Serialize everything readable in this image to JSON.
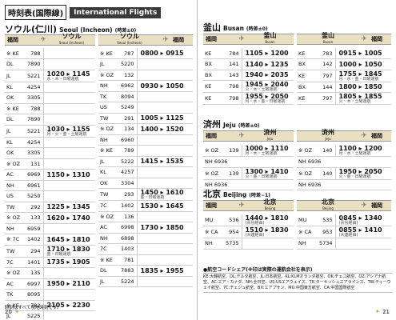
{
  "header": {
    "jp": "時刻表(国際線)",
    "en": "International Flights"
  },
  "seoul": {
    "title": "ソウル(仁川)",
    "title_en": "Seoul (Incheon)",
    "note": "(時差±0)",
    "bar_left": {
      "from": "福岡",
      "from_en": "Fukuoka",
      "dest": "ソウル",
      "dest_en": "Seoul (Incheon)"
    },
    "bar_right": {
      "from": "ソウル",
      "from_en": "Seoul (Incheon)",
      "dest": "福岡",
      "dest_en": "Fukuoka"
    },
    "dep_rows": [
      {
        "airline": "※ KE",
        "flight": "788",
        "time": "",
        "note": ""
      },
      {
        "airline": "DL",
        "flight": "7890",
        "time": "",
        "note": ""
      },
      {
        "airline": "JL",
        "flight": "5221",
        "time": "1020 ▸ 1145",
        "note": "水・木・日曜運航"
      },
      {
        "airline": "KL",
        "flight": "4254",
        "time": "",
        "note": ""
      },
      {
        "airline": "OK",
        "flight": "3305",
        "time": "",
        "note": ""
      },
      {
        "airline": "※ KE",
        "flight": "788",
        "time": "",
        "note": ""
      },
      {
        "airline": "DL",
        "flight": "7890",
        "time": "",
        "note": ""
      },
      {
        "airline": "JL",
        "flight": "5221",
        "time": "1030 ▸ 1155",
        "note": "月・火・金・土曜運航"
      },
      {
        "airline": "KL",
        "flight": "4254",
        "time": "",
        "note": ""
      },
      {
        "airline": "OK",
        "flight": "3305",
        "time": "",
        "note": ""
      },
      {
        "airline": "※ OZ",
        "flight": "131",
        "time": "",
        "note": ""
      },
      {
        "airline": "AC",
        "flight": "6969",
        "time": "1150 ▸ 1310",
        "note": ""
      },
      {
        "airline": "NH",
        "flight": "6961",
        "time": "",
        "note": ""
      },
      {
        "airline": "US",
        "flight": "5250",
        "time": "",
        "note": ""
      },
      {
        "airline": "TW",
        "flight": "292",
        "time": "1225 ▸ 1345",
        "note": ""
      },
      {
        "airline": "※ OZ",
        "flight": "133",
        "time": "1620 ▸ 1740",
        "note": ""
      },
      {
        "airline": "NH",
        "flight": "6959",
        "time": "",
        "note": ""
      },
      {
        "airline": "※ 7C",
        "flight": "1402",
        "time": "1645 ▸ 1810",
        "note": ""
      },
      {
        "airline": "TW",
        "flight": "294",
        "time": "1710 ▸ 1830",
        "note": "金・日曜運航"
      },
      {
        "airline": "7C",
        "flight": "1401",
        "time": "1735 ▸ 1905",
        "note": ""
      },
      {
        "airline": "※ OZ",
        "flight": "135",
        "time": "",
        "note": ""
      },
      {
        "airline": "AC",
        "flight": "6997",
        "time": "1950 ▸ 2110",
        "note": ""
      },
      {
        "airline": "TK",
        "flight": "8095",
        "time": "",
        "note": ""
      },
      {
        "airline": "※ KE",
        "flight": "782",
        "time": "2105 ▸ 2230",
        "note": ""
      },
      {
        "airline": "JL",
        "flight": "5225",
        "time": "",
        "note": ""
      }
    ],
    "ret_rows": [
      {
        "airline": "※ KE",
        "flight": "787",
        "time": "0800 ▸ 0915",
        "note": ""
      },
      {
        "airline": "JL",
        "flight": "5220",
        "time": "",
        "note": ""
      },
      {
        "airline": "※ OZ",
        "flight": "132",
        "time": "",
        "note": ""
      },
      {
        "airline": "NH",
        "flight": "6962",
        "time": "0930 ▸ 1050",
        "note": ""
      },
      {
        "airline": "TK",
        "flight": "8094",
        "time": "",
        "note": ""
      },
      {
        "airline": "US",
        "flight": "5249",
        "time": "",
        "note": ""
      },
      {
        "airline": "TW",
        "flight": "291",
        "time": "1005 ▸ 1125",
        "note": ""
      },
      {
        "airline": "※ OZ",
        "flight": "134",
        "time": "1400 ▸ 1520",
        "note": ""
      },
      {
        "airline": "NH",
        "flight": "6960",
        "time": "",
        "note": ""
      },
      {
        "airline": "※ KE",
        "flight": "789",
        "time": "",
        "note": ""
      },
      {
        "airline": "JL",
        "flight": "5222",
        "time": "1415 ▸ 1535",
        "note": ""
      },
      {
        "airline": "KL",
        "flight": "4257",
        "time": "",
        "note": ""
      },
      {
        "airline": "OK",
        "flight": "3304",
        "time": "",
        "note": ""
      },
      {
        "airline": "TW",
        "flight": "293",
        "time": "1450 ▸ 1610",
        "note": "金・日曜運航"
      },
      {
        "airline": "7C",
        "flight": "1402",
        "time": "1530 ▸ 1645",
        "note": ""
      },
      {
        "airline": "※ OZ",
        "flight": "136",
        "time": "",
        "note": ""
      },
      {
        "airline": "AC",
        "flight": "6998",
        "time": "1730 ▸ 1850",
        "note": ""
      },
      {
        "airline": "NH",
        "flight": "6898",
        "time": "",
        "note": ""
      },
      {
        "airline": "7C",
        "flight": "1403",
        "time": "",
        "note": ""
      },
      {
        "airline": "※ KE",
        "flight": "781",
        "time": "",
        "note": ""
      },
      {
        "airline": "DL",
        "flight": "7883",
        "time": "1835 ▸ 1955",
        "note": ""
      },
      {
        "airline": "JL",
        "flight": "5224",
        "time": "",
        "note": ""
      }
    ],
    "footnote": "時刻はすべて現地時刻です。"
  },
  "busan": {
    "title": "釜山",
    "title_en": "Busan",
    "note": "(時差±0)",
    "bar_left": {
      "from": "福岡",
      "from_en": "Fukuoka",
      "dest": "釜山",
      "dest_en": "Busan"
    },
    "bar_right": {
      "from": "釜山",
      "from_en": "Busan",
      "dest": "福岡",
      "dest_en": "Fukuoka"
    },
    "dep_rows": [
      {
        "airline": "KE",
        "flight": "784",
        "time": "1105 ▸ 1200",
        "note": ""
      },
      {
        "airline": "BX",
        "flight": "141",
        "time": "1140 ▸ 1235",
        "note": ""
      },
      {
        "airline": "BX",
        "flight": "143",
        "time": "1940 ▸ 2035",
        "note": ""
      },
      {
        "airline": "KE",
        "flight": "798",
        "time": "1945 ▸ 2040",
        "note": "火・木・土曜運航"
      },
      {
        "airline": "KE",
        "flight": "798",
        "time": "1955 ▸ 2050",
        "note": "月・水・金・日曜運航"
      }
    ],
    "ret_rows": [
      {
        "airline": "KE",
        "flight": "783",
        "time": "0915 ▸ 1005",
        "note": ""
      },
      {
        "airline": "BX",
        "flight": "142",
        "time": "1000 ▸ 1050",
        "note": ""
      },
      {
        "airline": "KE",
        "flight": "797",
        "time": "1755 ▸ 1845",
        "note": "月・水・金・日曜運航"
      },
      {
        "airline": "BX",
        "flight": "144",
        "time": "1800 ▸ 1850",
        "note": ""
      },
      {
        "airline": "KE",
        "flight": "797",
        "time": "1805 ▸ 1855",
        "note": "火・木・土曜運航"
      }
    ]
  },
  "jeju": {
    "title": "済州",
    "title_en": "Jeju",
    "note": "(時差±0)",
    "bar_left": {
      "from": "福岡",
      "from_en": "Fukuoka",
      "dest": "済州",
      "dest_en": "Jeju"
    },
    "bar_right": {
      "from": "済州",
      "from_en": "Jeju",
      "dest": "福岡",
      "dest_en": "Fukuoka"
    },
    "dep_rows": [
      {
        "airline": "※ OZ",
        "flight": "139",
        "time": "1000 ▸ 1110",
        "note": "月・水・土曜運航"
      },
      {
        "airline": "※ OZ",
        "flight": "139",
        "time": "1300 ▸ 1410",
        "note": "火・金・日曜運航"
      }
    ],
    "ret_rows": [
      {
        "airline": "※ OZ",
        "flight": "140",
        "time": "1100 ▸ 1200",
        "note": "月・水・土曜運航"
      },
      {
        "airline": "※ OZ",
        "flight": "140",
        "time": "1950 ▸ 2050",
        "note": "火・金・日曜運航"
      }
    ],
    "codeshare": {
      "dep": [
        "NH 6936",
        "NH 6936"
      ],
      "ret": [
        "NH 6936",
        "NH 6936"
      ]
    }
  },
  "beijing": {
    "title": "北京",
    "title_en": "Beijing",
    "note": "(時差−1)",
    "bar_left": {
      "from": "福岡",
      "from_en": "Fukuoka",
      "dest": "北京",
      "dest_en": "Beijing"
    },
    "bar_right": {
      "from": "北京",
      "from_en": "Beijing",
      "dest": "福岡",
      "dest_en": "Fukuoka"
    },
    "dep_rows": [
      {
        "airline": "MU",
        "flight": "536",
        "time": "1440 ▸ 1810",
        "note": "(青島経由)"
      },
      {
        "airline": "※ CA",
        "flight": "954",
        "time": "1510 ▸ 1830",
        "note": "(大連経由)"
      },
      {
        "airline": "NH",
        "flight": "5735",
        "time": "",
        "note": ""
      }
    ],
    "ret_rows": [
      {
        "airline": "MU",
        "flight": "535",
        "time": "0845 ▸ 1340",
        "note": "(青島経由)"
      },
      {
        "airline": "※ CA",
        "flight": "953",
        "time": "0855 ▸ 1410",
        "note": "(大連経由)"
      },
      {
        "airline": "NH",
        "flight": "5734",
        "time": "",
        "note": ""
      }
    ]
  },
  "legend": {
    "title": "●航空コードシェア(※印は実際の運航会社を表示)",
    "text": "KE:大韓航空、DL:デルタ航空、JL:日本航空、KL:KLMオランダ航空、OK:チェコ航空、OZ:アシアナ航空、AC:エア・カナダ、NH:全日空、US:USエアウェイズ、TK:ターキッシュエアラインズ、TW:ティーウェイ航空、7C:チェジュ航空、BX:エアプサン、MU:中国東方航空、CA:中国国際航空"
  },
  "pages": {
    "left": "20",
    "right": "21"
  }
}
